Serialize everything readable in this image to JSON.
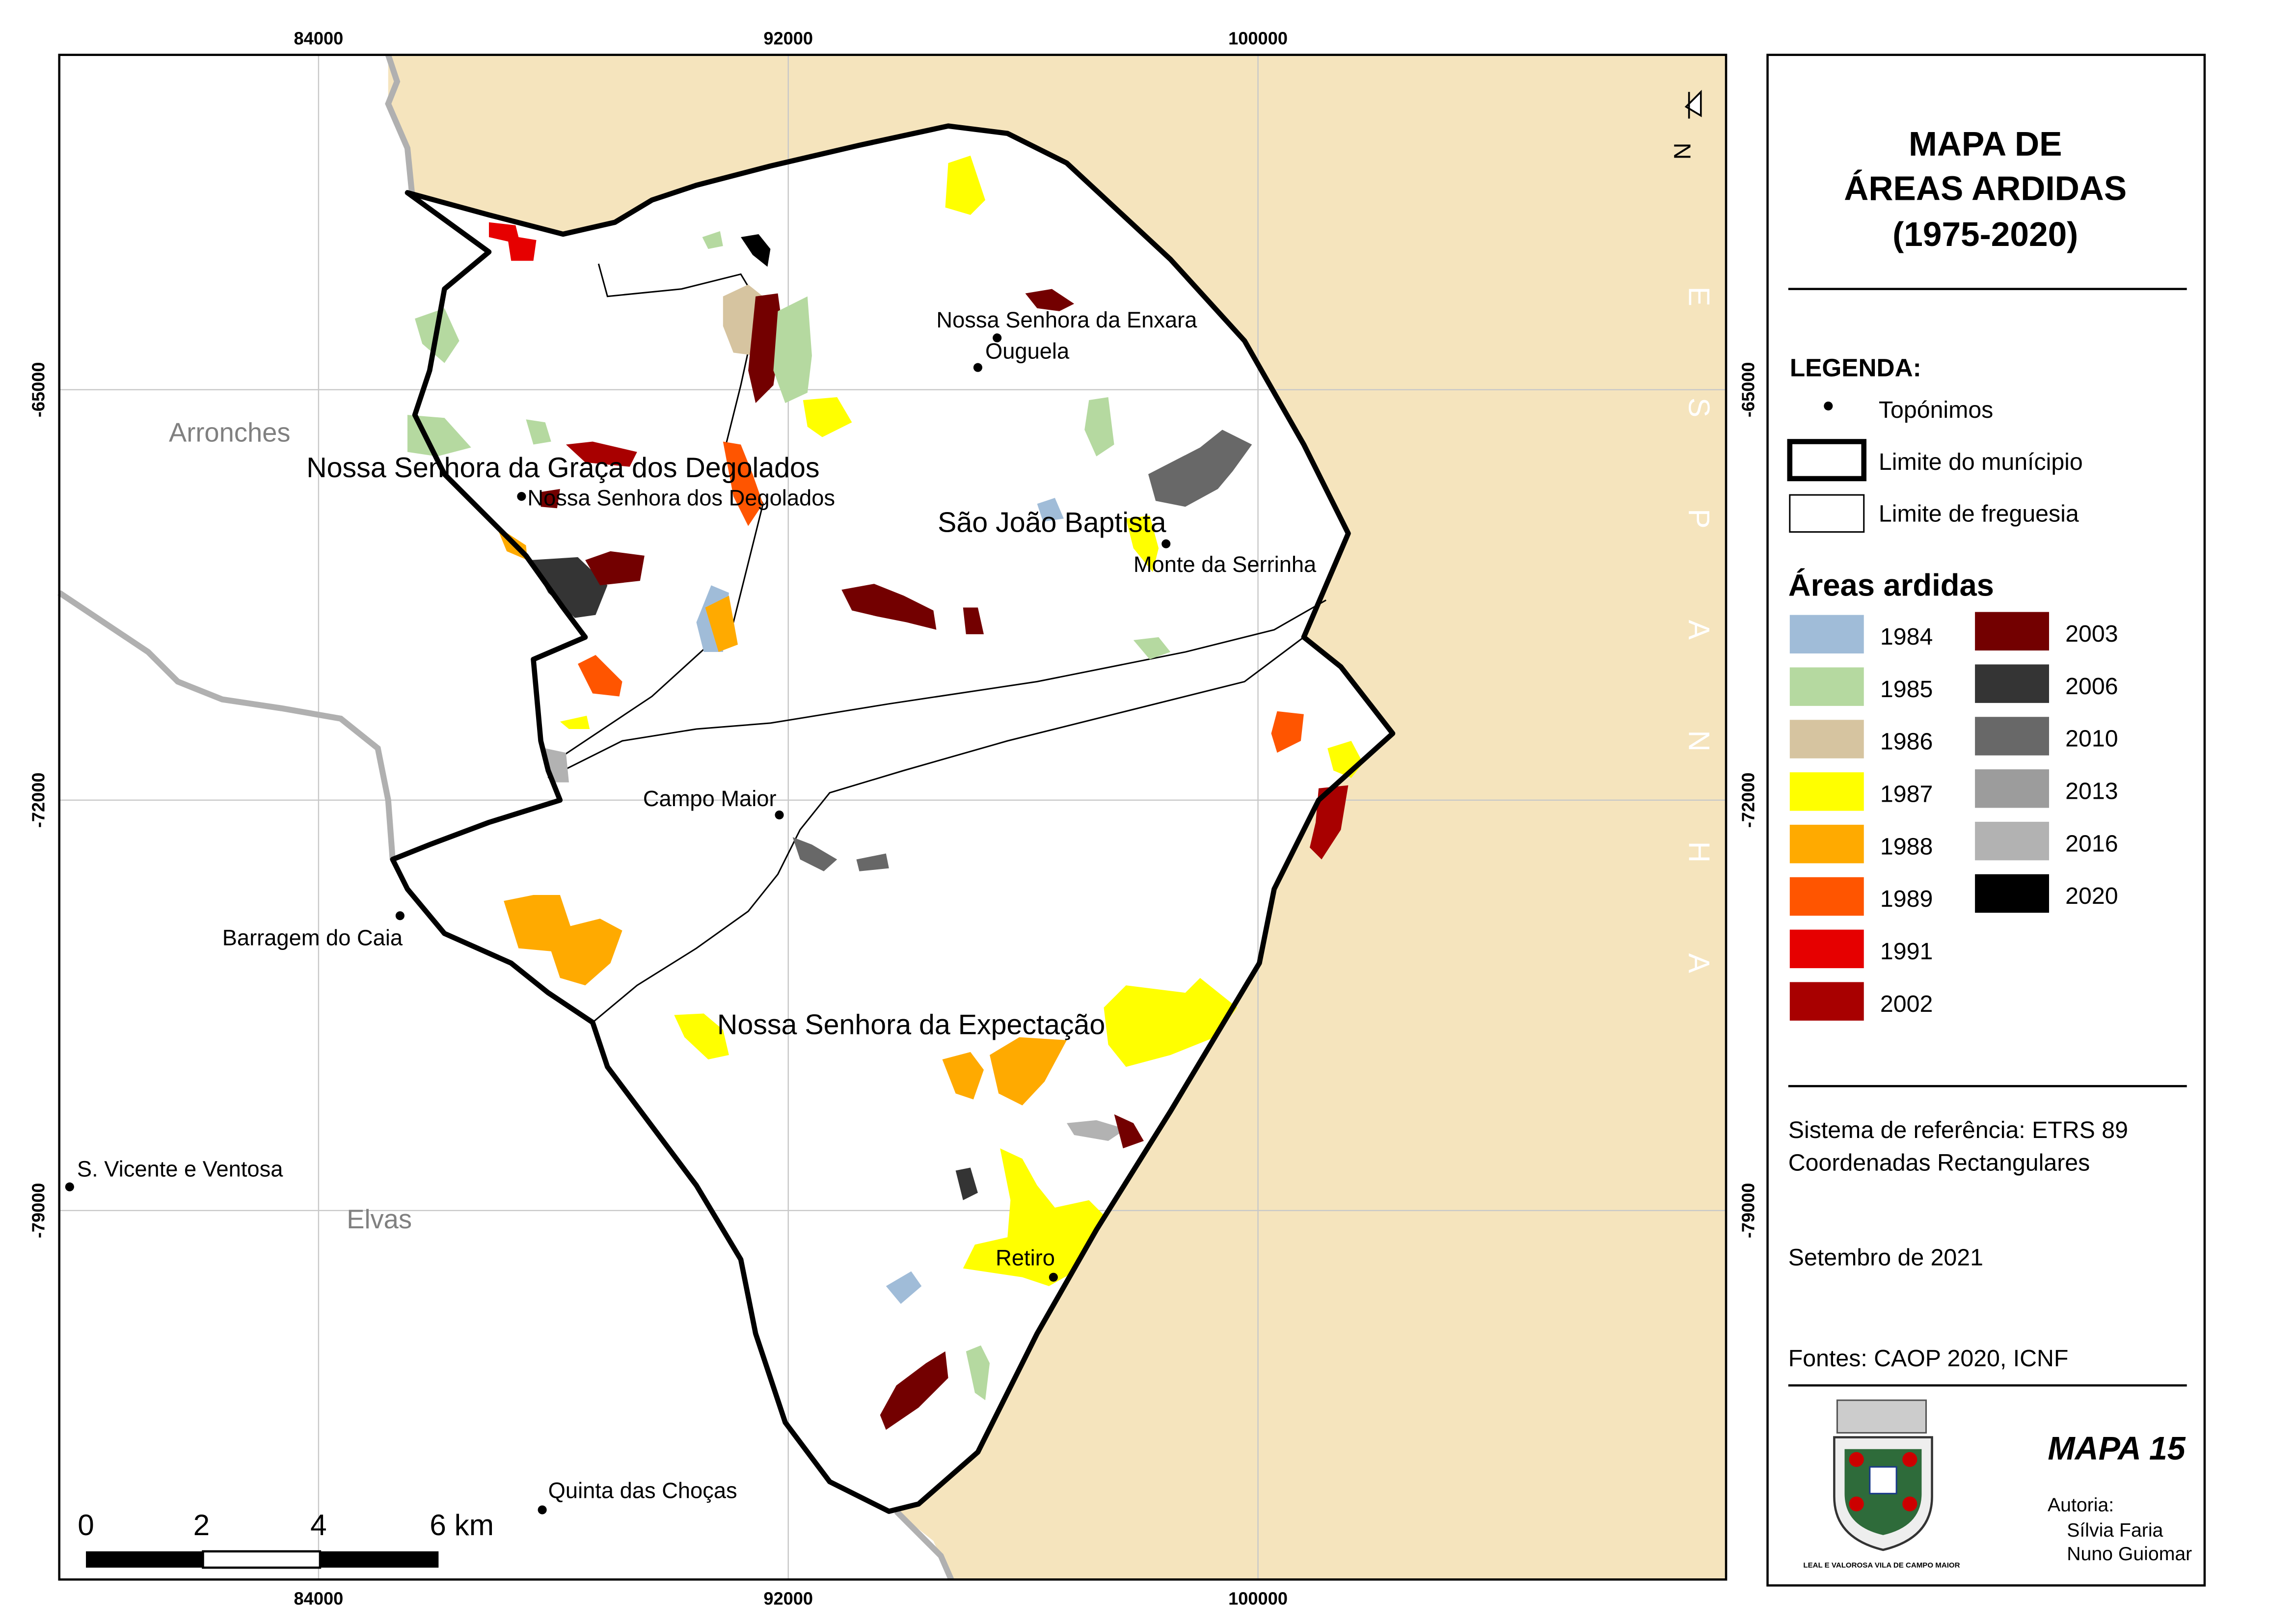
{
  "map": {
    "xlim": [
      79584,
      107972
    ],
    "ylim": [
      -85293,
      -59289
    ],
    "x_ticks": [
      84000,
      92000,
      100000
    ],
    "y_ticks": [
      -65000,
      -72000,
      -79000
    ],
    "country_letters": [
      "E",
      "S",
      "P",
      "A",
      "N",
      "H",
      "A"
    ],
    "north": "N",
    "municipalities": [
      "Arronches",
      "Elvas"
    ],
    "parishes": [
      "Nossa Senhora da Graça dos Degolados",
      "São João Baptista",
      "Nossa Senhora da Expectação"
    ],
    "toponyms": [
      "Nossa Senhora dos Degolados",
      "Nossa Senhora da Enxara",
      "Ouguela",
      "Monte da Serrinha",
      "Campo Maior",
      "Barragem do Caia",
      "S. Vicente e Ventosa",
      "Retiro",
      "Quinta das Choças"
    ],
    "scale_bar": [
      "0",
      "2",
      "4",
      "6 km"
    ]
  },
  "panel": {
    "title": [
      "MAPA DE",
      "ÁREAS ARDIDAS",
      "(1975-2020)"
    ],
    "legend_heading": "LEGENDA:",
    "symbols": [
      "Topónimos",
      "Limite do munícipio",
      "Limite de freguesia"
    ],
    "burned_heading": "Áreas ardidas",
    "burned": [
      {
        "year": 1984,
        "color": "#a0bcd8"
      },
      {
        "year": 1985,
        "color": "#b5d9a0"
      },
      {
        "year": 1986,
        "color": "#d6c4a0"
      },
      {
        "year": 1987,
        "color": "#ffff00"
      },
      {
        "year": 1988,
        "color": "#ffaa00"
      },
      {
        "year": 1989,
        "color": "#ff5500"
      },
      {
        "year": 1991,
        "color": "#e60000"
      },
      {
        "year": 2002,
        "color": "#a80000"
      },
      {
        "year": 2003,
        "color": "#730000"
      },
      {
        "year": 2006,
        "color": "#343434"
      },
      {
        "year": 2010,
        "color": "#686868"
      },
      {
        "year": 2013,
        "color": "#9c9c9c"
      },
      {
        "year": 2016,
        "color": "#b2b2b2"
      },
      {
        "year": 2020,
        "color": "#000000"
      }
    ],
    "reference": [
      "Sistema de referência: ETRS 89",
      "Coordenadas Rectangulares"
    ],
    "date": "Setembro de 2021",
    "sources": "Fontes: CAOP 2020, ICNF",
    "map_number": "MAPA 15",
    "authorship_heading": "Autoria:",
    "authors": [
      "Sílvia Faria",
      "Nuno Guiomar"
    ],
    "motto": "LEAL E VALOROSA VILA DE CAMPO MAIOR"
  }
}
